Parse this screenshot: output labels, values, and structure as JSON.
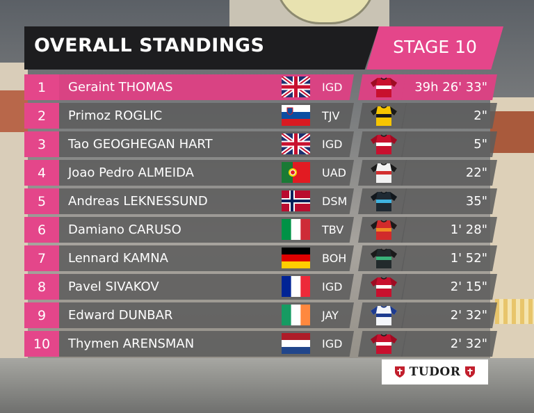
{
  "header": {
    "title": "OVERALL STANDINGS",
    "stage": "STAGE 10"
  },
  "colors": {
    "accent": "#e4468a",
    "header_bg": "#1d1d1f",
    "row_bg": "#5c5c5c"
  },
  "rows": [
    {
      "rank": "1",
      "name": "Geraint THOMAS",
      "flag": "united-kingdom",
      "team": "IGD",
      "jersey": "ineos-red-jersey",
      "time": "39h 26' 33\""
    },
    {
      "rank": "2",
      "name": "Primoz ROGLIC",
      "flag": "slovenia",
      "team": "TJV",
      "jersey": "jumbo-yellow-jersey",
      "time": "2\""
    },
    {
      "rank": "3",
      "name": "Tao GEOGHEGAN HART",
      "flag": "united-kingdom",
      "team": "IGD",
      "jersey": "ineos-red-jersey",
      "time": "5\""
    },
    {
      "rank": "4",
      "name": "Joao Pedro ALMEIDA",
      "flag": "portugal",
      "team": "UAD",
      "jersey": "uae-white-jersey",
      "time": "22\""
    },
    {
      "rank": "5",
      "name": "Andreas LEKNESSUND",
      "flag": "norway",
      "team": "DSM",
      "jersey": "dsm-dark-jersey",
      "time": "35\""
    },
    {
      "rank": "6",
      "name": "Damiano CARUSO",
      "flag": "italy",
      "team": "TBV",
      "jersey": "bahrain-jersey",
      "time": "1' 28\""
    },
    {
      "rank": "7",
      "name": "Lennard KAMNA",
      "flag": "germany",
      "team": "BOH",
      "jersey": "bora-jersey",
      "time": "1' 52\""
    },
    {
      "rank": "8",
      "name": "Pavel SIVAKOV",
      "flag": "france",
      "team": "IGD",
      "jersey": "ineos-red-jersey",
      "time": "2' 15\""
    },
    {
      "rank": "9",
      "name": "Edward DUNBAR",
      "flag": "ireland",
      "team": "JAY",
      "jersey": "jayco-white-jersey",
      "time": "2' 32\""
    },
    {
      "rank": "10",
      "name": "Thymen ARENSMAN",
      "flag": "netherlands",
      "team": "IGD",
      "jersey": "ineos-red-jersey",
      "time": "2' 32\""
    }
  ],
  "sponsor": {
    "name": "TUDOR",
    "icon": "tudor-shield-icon"
  }
}
